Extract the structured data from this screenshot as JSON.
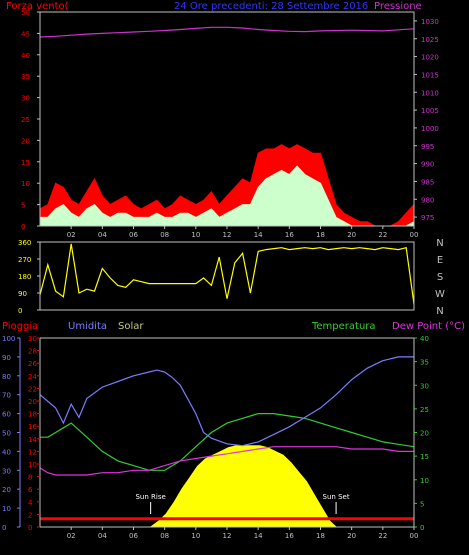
{
  "header": {
    "left_label": "Forza vento(",
    "center_title": "24 Ore precedenti: 28 Settembre 2016",
    "right_label": "Pressione"
  },
  "colors": {
    "wind_speed": "#ff0000",
    "wind_gust": "#ccffcc",
    "pressure": "#cc33cc",
    "direction": "#ffff00",
    "humidity": "#7b7bff",
    "temperature": "#33cc33",
    "dewpoint": "#dd33dd",
    "solar": "#ffff00",
    "rain": "#ff0000",
    "frame": "#c0c0c0"
  },
  "labels": {
    "pioggia": "Pioggia",
    "umidita": "Umidita",
    "solar": "Solar",
    "temperatura": "Temperatura",
    "dewpoint": "Dew Point (°C)",
    "sunrise": "Sun Rise",
    "sunset": "Sun Set"
  },
  "chart_data": [
    {
      "type": "line",
      "name": "wind-pressure",
      "x_ticks": [
        "02",
        "04",
        "06",
        "08",
        "10",
        "12",
        "14",
        "16",
        "18",
        "20",
        "22",
        "00"
      ],
      "xlim": [
        0,
        24
      ],
      "y_left_ticks": [
        "0",
        "5",
        "10",
        "15",
        "20",
        "25",
        "30",
        "35",
        "40",
        "45",
        "50"
      ],
      "ylim_left": [
        0,
        50
      ],
      "y_right_ticks": [
        "975",
        "980",
        "985",
        "990",
        "995",
        "1000",
        "1005",
        "1010",
        "1015",
        "1020",
        "1025",
        "1030"
      ],
      "ylim_right": [
        972.5,
        1032.5
      ],
      "series": [
        {
          "role": "wind_speed",
          "axis": "left",
          "x": [
            0,
            0.5,
            1,
            1.5,
            2,
            2.5,
            3,
            3.5,
            4,
            4.5,
            5,
            5.5,
            6,
            6.5,
            7,
            7.5,
            8,
            8.5,
            9,
            9.5,
            10,
            10.5,
            11,
            11.5,
            12,
            12.5,
            13,
            13.5,
            14,
            14.5,
            15,
            15.5,
            16,
            16.5,
            17,
            17.5,
            18,
            18.5,
            19,
            19.5,
            20,
            20.5,
            21,
            21.5,
            22,
            22.5,
            23,
            23.5,
            24
          ],
          "y": [
            4,
            5,
            10,
            9,
            6,
            5,
            8,
            11,
            7,
            5,
            6,
            7,
            5,
            4,
            5,
            6,
            4,
            5,
            7,
            6,
            5,
            6,
            8,
            5,
            7,
            9,
            11,
            10,
            17,
            18,
            18,
            19,
            18,
            19,
            18,
            17,
            17,
            11,
            5,
            3,
            2,
            1,
            1,
            0,
            0,
            0,
            1,
            3,
            5
          ]
        },
        {
          "role": "wind_gust",
          "axis": "left",
          "x": [
            0,
            0.5,
            1,
            1.5,
            2,
            2.5,
            3,
            3.5,
            4,
            4.5,
            5,
            5.5,
            6,
            6.5,
            7,
            7.5,
            8,
            8.5,
            9,
            9.5,
            10,
            10.5,
            11,
            11.5,
            12,
            12.5,
            13,
            13.5,
            14,
            14.5,
            15,
            15.5,
            16,
            16.5,
            17,
            17.5,
            18,
            18.5,
            19,
            19.5,
            20,
            20.5,
            21,
            21.5,
            22,
            22.5,
            23,
            23.5,
            24
          ],
          "y": [
            2,
            2,
            4,
            5,
            3,
            2,
            4,
            5,
            3,
            2,
            3,
            3,
            2,
            2,
            2,
            3,
            2,
            2,
            3,
            3,
            2,
            3,
            4,
            2,
            3,
            4,
            5,
            5,
            9,
            11,
            12,
            13,
            12,
            14,
            12,
            11,
            10,
            6,
            2,
            1,
            0,
            0,
            0,
            0,
            0,
            0,
            0,
            0,
            1
          ]
        },
        {
          "role": "pressure",
          "axis": "right",
          "x": [
            0,
            1,
            2,
            3,
            4,
            5,
            6,
            7,
            8,
            9,
            10,
            11,
            12,
            13,
            14,
            15,
            16,
            17,
            18,
            19,
            20,
            21,
            22,
            23,
            24
          ],
          "y": [
            1025.5,
            1025.7,
            1026.0,
            1026.3,
            1026.5,
            1026.7,
            1026.9,
            1027.1,
            1027.3,
            1027.6,
            1027.9,
            1028.2,
            1028.2,
            1028.0,
            1027.6,
            1027.3,
            1027.1,
            1027.0,
            1027.2,
            1027.3,
            1027.4,
            1027.3,
            1027.2,
            1027.5,
            1027.8
          ]
        }
      ]
    },
    {
      "type": "line",
      "name": "wind-direction",
      "x_ticks": [
        "02",
        "04",
        "06",
        "08",
        "10",
        "12",
        "14",
        "16",
        "18",
        "20",
        "22",
        "00"
      ],
      "xlim": [
        0,
        24
      ],
      "y_ticks": [
        "0",
        "90",
        "180",
        "270",
        "360"
      ],
      "ylim": [
        0,
        360
      ],
      "y_right_ticks": [
        "N",
        "W",
        "S",
        "E",
        "N"
      ],
      "series": [
        {
          "role": "direction",
          "x": [
            0,
            0.5,
            1,
            1.5,
            2,
            2.5,
            3,
            3.5,
            4,
            4.5,
            5,
            5.5,
            6,
            6.5,
            7,
            7.5,
            8,
            8.5,
            9,
            9.5,
            10,
            10.5,
            11,
            11.5,
            12,
            12.5,
            13,
            13.5,
            14,
            14.5,
            15,
            15.5,
            16,
            16.5,
            17,
            17.5,
            18,
            18.5,
            19,
            19.5,
            20,
            20.5,
            21,
            21.5,
            22,
            22.5,
            23,
            23.5,
            24
          ],
          "y": [
            80,
            240,
            100,
            70,
            350,
            90,
            110,
            100,
            220,
            170,
            130,
            120,
            160,
            150,
            140,
            140,
            140,
            140,
            140,
            140,
            140,
            170,
            130,
            280,
            60,
            250,
            300,
            90,
            310,
            320,
            325,
            330,
            320,
            325,
            330,
            325,
            330,
            320,
            325,
            330,
            325,
            330,
            325,
            320,
            330,
            325,
            320,
            330,
            30
          ]
        }
      ]
    },
    {
      "type": "line",
      "name": "humidity-temperature-solar",
      "x_ticks": [
        "02",
        "04",
        "06",
        "08",
        "10",
        "12",
        "14",
        "16",
        "18",
        "20",
        "22",
        "00"
      ],
      "xlim": [
        0,
        24
      ],
      "y_humidity_ticks": [
        "0",
        "10",
        "20",
        "30",
        "40",
        "50",
        "60",
        "70",
        "80",
        "90",
        "100"
      ],
      "ylim_humidity": [
        0,
        100
      ],
      "y_rain_ticks": [
        "0",
        "2",
        "4",
        "6",
        "8",
        "10",
        "12",
        "14",
        "16",
        "18",
        "20",
        "22",
        "24",
        "26",
        "28",
        "30"
      ],
      "ylim_rain": [
        0,
        30
      ],
      "y_temp_ticks": [
        "0",
        "5",
        "10",
        "15",
        "20",
        "25",
        "30",
        "35",
        "40"
      ],
      "ylim_temp": [
        0,
        40
      ],
      "annotations": [
        {
          "label": "Sun Rise",
          "x": 7.1
        },
        {
          "label": "Sun Set",
          "x": 19.0
        }
      ],
      "series": [
        {
          "role": "humidity",
          "axis": "humidity",
          "x": [
            0,
            1,
            1.5,
            2,
            2.5,
            3,
            4,
            5,
            6,
            7,
            7.5,
            8,
            8.5,
            9,
            10,
            10.5,
            11,
            12,
            13,
            14,
            15,
            16,
            17,
            18,
            19,
            20,
            21,
            22,
            23,
            24
          ],
          "y": [
            70,
            63,
            55,
            65,
            58,
            68,
            74,
            77,
            80,
            82,
            83,
            82,
            79,
            75,
            60,
            50,
            47,
            44,
            43,
            45,
            49,
            53,
            58,
            63,
            70,
            78,
            84,
            88,
            90,
            90
          ]
        },
        {
          "role": "temperature",
          "axis": "temp",
          "x": [
            0,
            0.5,
            1,
            1.5,
            2,
            3,
            4,
            5,
            6,
            7,
            8,
            9,
            10,
            11,
            12,
            13,
            14,
            15,
            16,
            17,
            18,
            19,
            20,
            21,
            22,
            23,
            24
          ],
          "y": [
            19,
            19,
            20,
            21,
            22,
            19,
            16,
            14,
            13,
            12,
            12,
            14,
            17,
            20,
            22,
            23,
            24,
            24,
            23.5,
            23,
            22,
            21,
            20,
            19,
            18,
            17.5,
            17
          ]
        },
        {
          "role": "dewpoint",
          "axis": "temp",
          "x": [
            0,
            0.5,
            1,
            2,
            3,
            4,
            5,
            6,
            7,
            8,
            9,
            10,
            11,
            12,
            13,
            14,
            15,
            16,
            17,
            18,
            19,
            20,
            21,
            22,
            23,
            24
          ],
          "y": [
            12.5,
            11.5,
            11,
            11,
            11,
            11.5,
            11.5,
            12,
            12,
            13,
            14,
            14.5,
            15,
            15.5,
            16,
            16.5,
            17,
            17,
            17,
            17,
            17,
            16.5,
            16.5,
            16.5,
            16,
            16
          ]
        },
        {
          "role": "solar",
          "axis": "humidity",
          "x": [
            0,
            7.1,
            7.6,
            8.1,
            8.6,
            9.1,
            9.6,
            10.1,
            10.6,
            11.1,
            11.6,
            12.1,
            12.6,
            13.1,
            13.6,
            14.1,
            14.6,
            15.1,
            15.6,
            16.1,
            16.6,
            17.1,
            17.6,
            18.1,
            18.6,
            19.0,
            24
          ],
          "y": [
            0,
            0,
            3,
            7,
            13,
            20,
            26,
            32,
            36,
            38,
            40,
            42,
            43,
            43,
            43,
            43,
            42,
            40,
            38,
            34,
            29,
            24,
            17,
            10,
            3,
            0,
            0
          ]
        },
        {
          "role": "rain",
          "axis": "rain",
          "x": [
            0,
            24
          ],
          "y": [
            1.3,
            1.3
          ]
        }
      ]
    }
  ]
}
